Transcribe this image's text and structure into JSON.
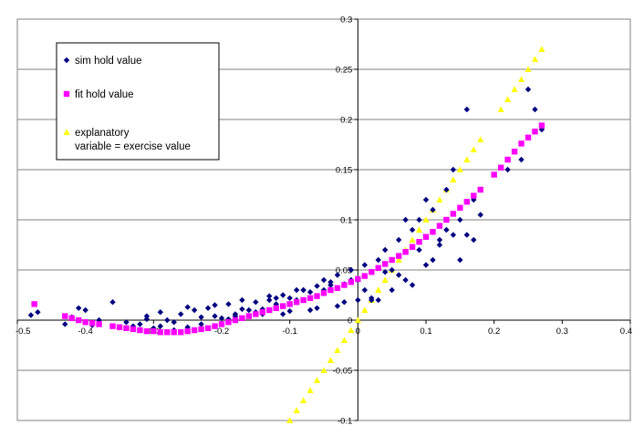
{
  "chart_data": {
    "type": "scatter",
    "title": "",
    "xlabel": "",
    "ylabel": "",
    "xlim": [
      -0.5,
      0.4
    ],
    "ylim": [
      -0.1,
      0.3
    ],
    "x_ticks": [
      -0.5,
      -0.4,
      -0.3,
      -0.2,
      -0.1,
      0,
      0.1,
      0.2,
      0.3,
      0.4
    ],
    "x_tick_labels": [
      "-0.5",
      "-0.4",
      "-0.3",
      "-0.2",
      "-0.1",
      "0",
      "0.1",
      "0.2",
      "0.3",
      "0.4"
    ],
    "y_ticks": [
      -0.1,
      -0.05,
      0,
      0.05,
      0.1,
      0.15,
      0.2,
      0.25,
      0.3
    ],
    "y_tick_labels": [
      "-0.1",
      "-0.05",
      "0",
      "0.05",
      "0.1",
      "0.15",
      "0.2",
      "0.25",
      "0.3"
    ],
    "grid": "horizontal",
    "legend_position": "top-left",
    "series": [
      {
        "name": "sim hold value",
        "marker": "diamond",
        "color": "#000080",
        "x": [
          -0.48,
          -0.47,
          -0.43,
          -0.42,
          -0.41,
          -0.4,
          -0.39,
          -0.38,
          -0.36,
          -0.34,
          -0.33,
          -0.32,
          -0.31,
          -0.3,
          -0.29,
          -0.28,
          -0.27,
          -0.26,
          -0.25,
          -0.24,
          -0.23,
          -0.22,
          -0.21,
          -0.2,
          -0.19,
          -0.18,
          -0.17,
          -0.16,
          -0.15,
          -0.14,
          -0.13,
          -0.12,
          -0.11,
          -0.1,
          -0.09,
          -0.08,
          -0.07,
          -0.06,
          -0.05,
          -0.04,
          -0.03,
          -0.02,
          -0.01,
          0,
          0.01,
          0.02,
          0.03,
          0.04,
          0.05,
          0.06,
          0.07,
          0.08,
          0.09,
          0.1,
          0.11,
          0.12,
          0.13,
          0.14,
          0.15,
          0.16,
          0.17,
          -0.31,
          -0.29,
          -0.27,
          -0.25,
          -0.23,
          -0.21,
          -0.19,
          -0.17,
          -0.15,
          -0.13,
          -0.11,
          -0.09,
          -0.07,
          -0.05,
          -0.03,
          -0.01,
          0.01,
          0.03,
          0.05,
          0.07,
          0.09,
          0.11,
          0.13,
          0.15,
          0.17,
          -0.18,
          -0.14,
          -0.1,
          -0.06,
          -0.02,
          0.02,
          0.06,
          0.1,
          0.14,
          0.18,
          -0.12,
          -0.08,
          -0.04,
          0,
          0.04,
          0.08,
          0.12,
          0.16,
          0.22,
          0.24,
          0.25,
          0.26,
          0.27
        ],
        "y": [
          0.005,
          0.008,
          -0.004,
          0.003,
          0.012,
          0.01,
          -0.005,
          0,
          0.018,
          -0.002,
          -0.006,
          -0.004,
          0.001,
          -0.008,
          -0.006,
          0,
          -0.01,
          0.006,
          -0.007,
          0.01,
          -0.004,
          0.012,
          0.004,
          0.002,
          0.016,
          0.006,
          0.011,
          0.01,
          0.018,
          0.011,
          0.02,
          0.016,
          0.025,
          0.022,
          0.02,
          0.03,
          0.028,
          0.034,
          0.04,
          0.038,
          0.045,
          0.036,
          0.05,
          0.04,
          0.055,
          0.02,
          0.06,
          0.07,
          0.03,
          0.08,
          0.1,
          0.09,
          0.1,
          0.12,
          0.11,
          0.08,
          0.13,
          0.15,
          0.06,
          0.21,
          0.12,
          0.004,
          0.008,
          -0.002,
          0.013,
          0.003,
          0.015,
          0.001,
          0.02,
          0.008,
          0.024,
          0.006,
          0.03,
          0.01,
          0.03,
          0.014,
          0.04,
          0.03,
          0.02,
          0.05,
          0.04,
          0.07,
          0.06,
          0.09,
          0.1,
          0.08,
          0.004,
          0.006,
          0.009,
          0.012,
          0.018,
          0.022,
          0.045,
          0.055,
          0.085,
          0.105,
          0.022,
          0.03,
          0.035,
          0.02,
          0.048,
          0.035,
          0.075,
          0.085,
          0.15,
          0.16,
          0.23,
          0.21,
          0.19
        ]
      },
      {
        "name": "fit hold value",
        "marker": "square",
        "color": "#ff00ff",
        "x": [
          -0.475,
          -0.43,
          -0.42,
          -0.41,
          -0.4,
          -0.39,
          -0.38,
          -0.36,
          -0.35,
          -0.34,
          -0.33,
          -0.32,
          -0.31,
          -0.3,
          -0.29,
          -0.28,
          -0.27,
          -0.26,
          -0.25,
          -0.24,
          -0.23,
          -0.22,
          -0.21,
          -0.2,
          -0.19,
          -0.18,
          -0.17,
          -0.16,
          -0.15,
          -0.14,
          -0.13,
          -0.12,
          -0.11,
          -0.1,
          -0.09,
          -0.08,
          -0.07,
          -0.06,
          -0.05,
          -0.04,
          -0.03,
          -0.02,
          -0.01,
          0,
          0.01,
          0.02,
          0.03,
          0.04,
          0.05,
          0.06,
          0.07,
          0.08,
          0.09,
          0.1,
          0.11,
          0.12,
          0.13,
          0.14,
          0.15,
          0.16,
          0.17,
          0.18,
          0.2,
          0.21,
          0.22,
          0.23,
          0.24,
          0.25,
          0.26,
          0.27
        ],
        "y": [
          0.016,
          0.004,
          0.002,
          0.0,
          -0.002,
          -0.003,
          -0.004,
          -0.006,
          -0.007,
          -0.008,
          -0.009,
          -0.01,
          -0.011,
          -0.011,
          -0.012,
          -0.012,
          -0.012,
          -0.012,
          -0.011,
          -0.01,
          -0.009,
          -0.008,
          -0.006,
          -0.004,
          -0.002,
          0.0,
          0.002,
          0.004,
          0.006,
          0.008,
          0.01,
          0.012,
          0.014,
          0.016,
          0.018,
          0.02,
          0.022,
          0.024,
          0.027,
          0.03,
          0.032,
          0.035,
          0.038,
          0.041,
          0.044,
          0.048,
          0.052,
          0.056,
          0.06,
          0.064,
          0.068,
          0.073,
          0.078,
          0.083,
          0.088,
          0.094,
          0.1,
          0.106,
          0.112,
          0.118,
          0.124,
          0.13,
          0.145,
          0.152,
          0.16,
          0.168,
          0.176,
          0.182,
          0.188,
          0.194
        ]
      },
      {
        "name": "explanatory variable = exercise value",
        "legend_lines": [
          "explanatory",
          "variable = exercise value"
        ],
        "marker": "triangle",
        "color": "#ffff00",
        "x": [
          -0.1,
          -0.09,
          -0.08,
          -0.07,
          -0.06,
          -0.05,
          -0.04,
          -0.03,
          -0.02,
          -0.01,
          0,
          0.01,
          0.02,
          0.03,
          0.04,
          0.05,
          0.06,
          0.07,
          0.08,
          0.09,
          0.1,
          0.11,
          0.12,
          0.13,
          0.14,
          0.15,
          0.16,
          0.17,
          0.18,
          0.21,
          0.22,
          0.23,
          0.24,
          0.25,
          0.26,
          0.27
        ],
        "y": [
          -0.1,
          -0.09,
          -0.08,
          -0.07,
          -0.06,
          -0.05,
          -0.04,
          -0.03,
          -0.02,
          -0.01,
          0,
          0.01,
          0.02,
          0.03,
          0.04,
          0.05,
          0.06,
          0.07,
          0.08,
          0.09,
          0.1,
          0.11,
          0.12,
          0.13,
          0.14,
          0.15,
          0.16,
          0.17,
          0.18,
          0.21,
          0.22,
          0.23,
          0.24,
          0.25,
          0.26,
          0.27
        ]
      }
    ]
  }
}
